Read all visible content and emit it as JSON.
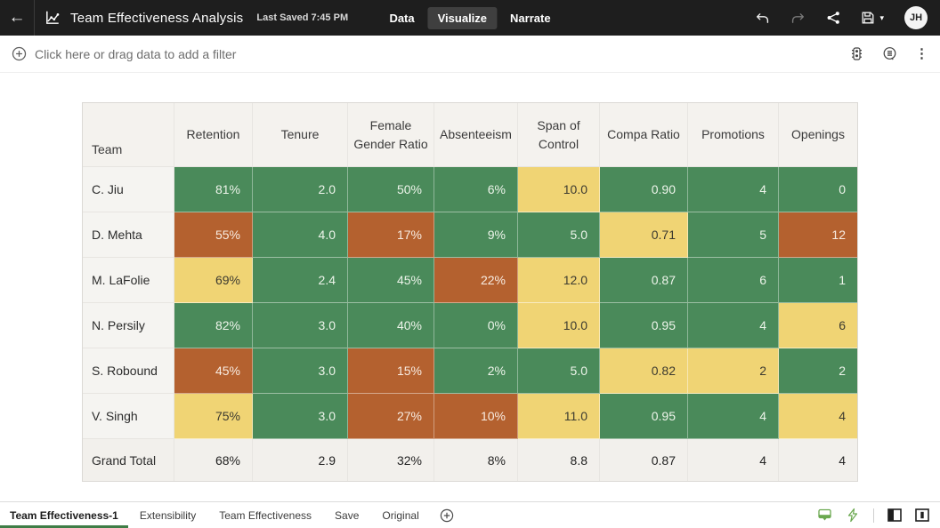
{
  "topbar": {
    "title": "Team Effectiveness Analysis",
    "last_saved": "Last Saved 7:45 PM",
    "tabs": [
      {
        "label": "Data",
        "active": false
      },
      {
        "label": "Visualize",
        "active": true
      },
      {
        "label": "Narrate",
        "active": false
      }
    ],
    "avatar_initials": "JH",
    "icons": {
      "back": "←",
      "save_caret": "▾"
    }
  },
  "filter_bar": {
    "prompt": "Click here or drag data to add a filter",
    "icons": {
      "menu": "⋮"
    }
  },
  "table": {
    "columns": [
      "Team",
      "Retention",
      "Tenure",
      "Female Gender Ratio",
      "Absenteeism",
      "Span of Control",
      "Compa Ratio",
      "Promotions",
      "Openings"
    ],
    "rows": [
      {
        "team": "C. Jiu",
        "cells": [
          {
            "v": "81%",
            "c": "green"
          },
          {
            "v": "2.0",
            "c": "green"
          },
          {
            "v": "50%",
            "c": "green"
          },
          {
            "v": "6%",
            "c": "green"
          },
          {
            "v": "10.0",
            "c": "yellow"
          },
          {
            "v": "0.90",
            "c": "green"
          },
          {
            "v": "4",
            "c": "green"
          },
          {
            "v": "0",
            "c": "green"
          }
        ]
      },
      {
        "team": "D. Mehta",
        "cells": [
          {
            "v": "55%",
            "c": "orange"
          },
          {
            "v": "4.0",
            "c": "green"
          },
          {
            "v": "17%",
            "c": "orange"
          },
          {
            "v": "9%",
            "c": "green"
          },
          {
            "v": "5.0",
            "c": "green"
          },
          {
            "v": "0.71",
            "c": "yellow"
          },
          {
            "v": "5",
            "c": "green"
          },
          {
            "v": "12",
            "c": "orange"
          }
        ]
      },
      {
        "team": "M. LaFolie",
        "cells": [
          {
            "v": "69%",
            "c": "yellow"
          },
          {
            "v": "2.4",
            "c": "green"
          },
          {
            "v": "45%",
            "c": "green"
          },
          {
            "v": "22%",
            "c": "orange"
          },
          {
            "v": "12.0",
            "c": "yellow"
          },
          {
            "v": "0.87",
            "c": "green"
          },
          {
            "v": "6",
            "c": "green"
          },
          {
            "v": "1",
            "c": "green"
          }
        ]
      },
      {
        "team": "N. Persily",
        "cells": [
          {
            "v": "82%",
            "c": "green"
          },
          {
            "v": "3.0",
            "c": "green"
          },
          {
            "v": "40%",
            "c": "green"
          },
          {
            "v": "0%",
            "c": "green"
          },
          {
            "v": "10.0",
            "c": "yellow"
          },
          {
            "v": "0.95",
            "c": "green"
          },
          {
            "v": "4",
            "c": "green"
          },
          {
            "v": "6",
            "c": "yellow"
          }
        ]
      },
      {
        "team": "S. Robound",
        "cells": [
          {
            "v": "45%",
            "c": "orange"
          },
          {
            "v": "3.0",
            "c": "green"
          },
          {
            "v": "15%",
            "c": "orange"
          },
          {
            "v": "2%",
            "c": "green"
          },
          {
            "v": "5.0",
            "c": "green"
          },
          {
            "v": "0.82",
            "c": "yellow"
          },
          {
            "v": "2",
            "c": "yellow"
          },
          {
            "v": "2",
            "c": "green"
          }
        ]
      },
      {
        "team": "V. Singh",
        "cells": [
          {
            "v": "75%",
            "c": "yellow"
          },
          {
            "v": "3.0",
            "c": "green"
          },
          {
            "v": "27%",
            "c": "orange"
          },
          {
            "v": "10%",
            "c": "orange"
          },
          {
            "v": "11.0",
            "c": "yellow"
          },
          {
            "v": "0.95",
            "c": "green"
          },
          {
            "v": "4",
            "c": "green"
          },
          {
            "v": "4",
            "c": "yellow"
          }
        ]
      }
    ],
    "grand_total": {
      "team": "Grand Total",
      "cells": [
        {
          "v": "68%",
          "c": "neutral"
        },
        {
          "v": "2.9",
          "c": "neutral"
        },
        {
          "v": "32%",
          "c": "neutral"
        },
        {
          "v": "8%",
          "c": "neutral"
        },
        {
          "v": "8.8",
          "c": "neutral"
        },
        {
          "v": "0.87",
          "c": "neutral"
        },
        {
          "v": "4",
          "c": "neutral"
        },
        {
          "v": "4",
          "c": "neutral"
        }
      ]
    }
  },
  "bottom_bar": {
    "tabs": [
      {
        "label": "Team Effectiveness-1",
        "active": true
      },
      {
        "label": "Extensibility",
        "active": false
      },
      {
        "label": "Team Effectiveness",
        "active": false
      },
      {
        "label": "Save",
        "active": false
      },
      {
        "label": "Original",
        "active": false
      }
    ]
  },
  "colors": {
    "green": "#4a8a5a",
    "orange": "#b4612f",
    "yellow": "#f0d474",
    "neutral_row": "#f2f0ec",
    "accent_green": "#3f7d46",
    "bottom_icon_green": "#6aa84f",
    "topbar_bg": "#1e1e1e"
  }
}
